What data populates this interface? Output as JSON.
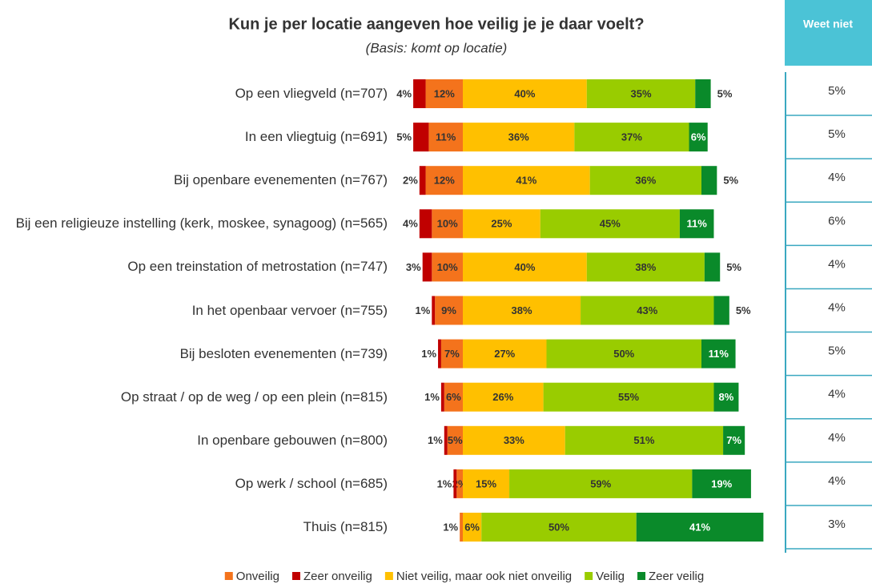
{
  "chart_data": {
    "type": "diverging_bar",
    "title": "Kun je per locatie aangeven hoe veilig je je daar voelt?",
    "subtitle": "(Basis: komt op locatie)",
    "categories": [
      "Op een vliegveld (n=707)",
      "In een vliegtuig (n=691)",
      "Bij openbare evenementen (n=767)",
      "Bij een religieuze instelling (kerk, moskee, synagoog) (n=565)",
      "Op een treinstation of metrostation (n=747)",
      "In het openbaar vervoer (n=755)",
      "Bij besloten evenementen (n=739)",
      "Op straat / op de weg / op een plein (n=815)",
      "In openbare gebouwen (n=800)",
      "Op werk / school (n=685)",
      "Thuis (n=815)"
    ],
    "series": [
      {
        "name": "Onveilig",
        "color": "#f4731c",
        "values": [
          12,
          11,
          12,
          10,
          10,
          9,
          7,
          6,
          5,
          2,
          1
        ],
        "value_labels": [
          "12%",
          "11%",
          "12%",
          "10%",
          "10%",
          "9%",
          "7%",
          "6%",
          "5%",
          "2%",
          "1%"
        ]
      },
      {
        "name": "Zeer onveilig",
        "color": "#c00000",
        "values": [
          4,
          5,
          2,
          4,
          3,
          1,
          1,
          1,
          1,
          1,
          null
        ],
        "value_labels": [
          "4%",
          "5%",
          "2%",
          "4%",
          "3%",
          "1%",
          "1%",
          "1%",
          "1%",
          "1%",
          null
        ]
      },
      {
        "name": "Niet veilig, maar ook niet onveilig",
        "color": "#ffc000",
        "values": [
          40,
          36,
          41,
          25,
          40,
          38,
          27,
          26,
          33,
          15,
          6
        ],
        "value_labels": [
          "40%",
          "36%",
          "41%",
          "25%",
          "40%",
          "38%",
          "27%",
          "26%",
          "33%",
          "15%",
          "6%"
        ]
      },
      {
        "name": "Veilig",
        "color": "#99cc00",
        "values": [
          35,
          37,
          36,
          45,
          38,
          43,
          50,
          55,
          51,
          59,
          50
        ],
        "value_labels": [
          "35%",
          "37%",
          "36%",
          "45%",
          "38%",
          "43%",
          "50%",
          "55%",
          "51%",
          "59%",
          "50%"
        ]
      },
      {
        "name": "Zeer veilig",
        "color": "#0a8a2a",
        "values": [
          5,
          6,
          5,
          11,
          5,
          5,
          11,
          8,
          7,
          19,
          41
        ],
        "value_labels": [
          "5%",
          "6%",
          "5%",
          "11%",
          "5%",
          "5%",
          "11%",
          "8%",
          "7%",
          "19%",
          "41%"
        ]
      }
    ],
    "side_column": {
      "header": "Weet niet",
      "values": [
        5,
        5,
        4,
        6,
        4,
        4,
        5,
        4,
        4,
        4,
        3
      ],
      "value_labels": [
        "5%",
        "5%",
        "4%",
        "6%",
        "4%",
        "4%",
        "5%",
        "4%",
        "4%",
        "4%",
        "3%"
      ]
    }
  }
}
